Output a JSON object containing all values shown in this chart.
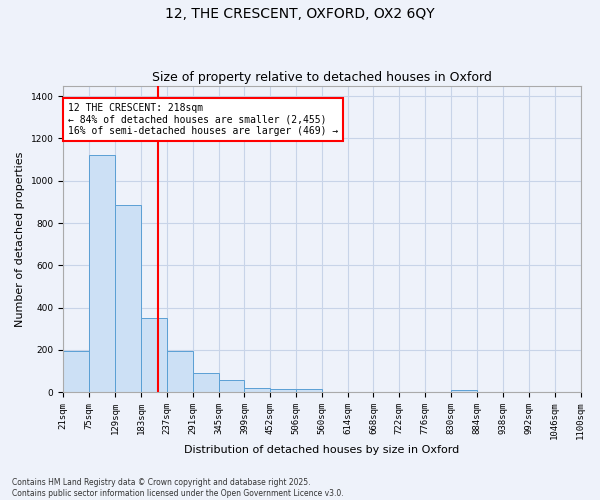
{
  "title1": "12, THE CRESCENT, OXFORD, OX2 6QY",
  "title2": "Size of property relative to detached houses in Oxford",
  "xlabel": "Distribution of detached houses by size in Oxford",
  "ylabel": "Number of detached properties",
  "bar_color": "#cce0f5",
  "bar_edge_color": "#5a9fd4",
  "grid_color": "#c8d4e8",
  "background_color": "#eef2fa",
  "vline_color": "red",
  "vline_x": 218,
  "annotation_text": "12 THE CRESCENT: 218sqm\n← 84% of detached houses are smaller (2,455)\n16% of semi-detached houses are larger (469) →",
  "bins": [
    21,
    75,
    129,
    183,
    237,
    291,
    345,
    399,
    452,
    506,
    560,
    614,
    668,
    722,
    776,
    830,
    884,
    938,
    992,
    1046,
    1100
  ],
  "values": [
    195,
    1120,
    885,
    350,
    195,
    90,
    55,
    20,
    17,
    13,
    0,
    0,
    0,
    0,
    0,
    10,
    0,
    0,
    0,
    0
  ],
  "ylim": [
    0,
    1450
  ],
  "yticks": [
    0,
    200,
    400,
    600,
    800,
    1000,
    1200,
    1400
  ],
  "footnote1": "Contains HM Land Registry data © Crown copyright and database right 2025.",
  "footnote2": "Contains public sector information licensed under the Open Government Licence v3.0.",
  "title_fontsize": 10,
  "subtitle_fontsize": 9,
  "tick_fontsize": 6.5,
  "label_fontsize": 8,
  "annot_fontsize": 7
}
